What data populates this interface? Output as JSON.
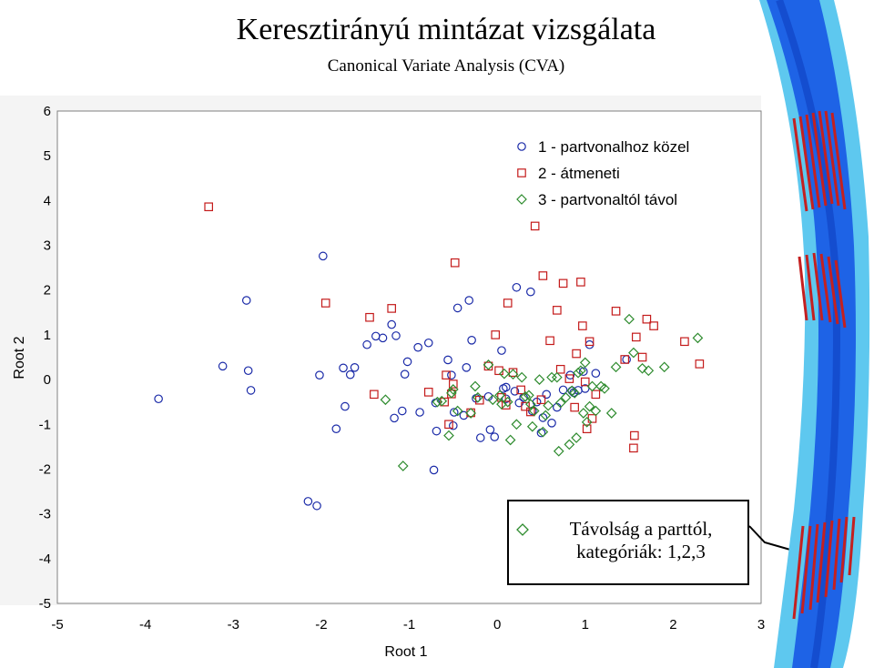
{
  "header": {
    "title": "Keresztirányú mintázat vizsgálata",
    "subtitle": "Canonical Variate Analysis (CVA)"
  },
  "callout": {
    "line1": "Távolság a parttól,",
    "line2": "kategóriák: 1,2,3",
    "marker_color": "#2e8b2e"
  },
  "colors": {
    "plot_background": "#ffffff",
    "frame": "#808080",
    "river_deep": "#1e63e6",
    "river_shallow": "#5ec8ef",
    "transect": "#c42020"
  },
  "chart_data": {
    "type": "scatter",
    "xlabel": "Root 1",
    "ylabel": "Root 2",
    "xlim": [
      -5,
      3
    ],
    "ylim": [
      -5,
      6
    ],
    "x_ticks": [
      "-5",
      "-4",
      "-3",
      "-2",
      "-1",
      "0",
      "1",
      "2",
      "3"
    ],
    "y_ticks": [
      "-5",
      "-4",
      "-3",
      "-2",
      "-1",
      "0",
      "1",
      "2",
      "3",
      "4",
      "5",
      "6"
    ],
    "grid": false,
    "legend_position": "top-right",
    "series": [
      {
        "name": "1 - partvonalhoz közel",
        "marker": "circle",
        "color": "#1a2aa8",
        "points": [
          [
            -3.85,
            -0.43
          ],
          [
            -3.12,
            0.3
          ],
          [
            -2.85,
            1.77
          ],
          [
            -2.83,
            0.2
          ],
          [
            -2.8,
            -0.24
          ],
          [
            -2.15,
            -2.72
          ],
          [
            -2.05,
            -2.82
          ],
          [
            -2.02,
            0.1
          ],
          [
            -1.98,
            2.76
          ],
          [
            -1.83,
            -1.1
          ],
          [
            -1.75,
            0.26
          ],
          [
            -1.73,
            -0.6
          ],
          [
            -1.67,
            0.11
          ],
          [
            -1.62,
            0.27
          ],
          [
            -1.48,
            0.78
          ],
          [
            -1.38,
            0.97
          ],
          [
            -1.3,
            0.93
          ],
          [
            -1.2,
            1.23
          ],
          [
            -1.17,
            -0.86
          ],
          [
            -1.15,
            0.98
          ],
          [
            -1.08,
            -0.7
          ],
          [
            -1.05,
            0.12
          ],
          [
            -1.02,
            0.4
          ],
          [
            -0.9,
            0.72
          ],
          [
            -0.88,
            -0.73
          ],
          [
            -0.78,
            0.82
          ],
          [
            -0.72,
            -2.02
          ],
          [
            -0.7,
            -0.52
          ],
          [
            -0.69,
            -1.15
          ],
          [
            -0.56,
            0.44
          ],
          [
            -0.52,
            0.1
          ],
          [
            -0.5,
            -1.03
          ],
          [
            -0.49,
            -0.73
          ],
          [
            -0.45,
            1.6
          ],
          [
            -0.38,
            -0.8
          ],
          [
            -0.35,
            0.27
          ],
          [
            -0.32,
            1.77
          ],
          [
            -0.29,
            0.88
          ],
          [
            -0.24,
            -0.42
          ],
          [
            -0.19,
            -1.3
          ],
          [
            -0.1,
            -0.38
          ],
          [
            -0.08,
            -1.12
          ],
          [
            -0.03,
            -1.28
          ],
          [
            0.05,
            0.65
          ],
          [
            0.07,
            -0.2
          ],
          [
            0.1,
            -0.17
          ],
          [
            0.1,
            -0.43
          ],
          [
            0.2,
            -0.26
          ],
          [
            0.22,
            2.06
          ],
          [
            0.25,
            -0.52
          ],
          [
            0.3,
            -0.4
          ],
          [
            0.38,
            1.96
          ],
          [
            0.4,
            -0.7
          ],
          [
            0.45,
            -0.5
          ],
          [
            0.5,
            -1.19
          ],
          [
            0.52,
            -0.85
          ],
          [
            0.56,
            -0.33
          ],
          [
            0.62,
            -0.97
          ],
          [
            0.68,
            -0.62
          ],
          [
            0.75,
            -0.23
          ],
          [
            0.83,
            0.1
          ],
          [
            0.85,
            -0.25
          ],
          [
            0.87,
            -0.29
          ],
          [
            0.92,
            -0.24
          ],
          [
            0.98,
            0.18
          ],
          [
            1.0,
            -0.2
          ],
          [
            1.05,
            0.78
          ],
          [
            1.12,
            0.14
          ],
          [
            1.47,
            0.45
          ]
        ]
      },
      {
        "name": "2 - átmeneti",
        "marker": "square",
        "color": "#c41a1a",
        "points": [
          [
            -3.28,
            3.86
          ],
          [
            -1.95,
            1.71
          ],
          [
            -1.45,
            1.39
          ],
          [
            -1.4,
            -0.33
          ],
          [
            -1.2,
            1.59
          ],
          [
            -0.78,
            -0.28
          ],
          [
            -0.6,
            -0.5
          ],
          [
            -0.58,
            0.1
          ],
          [
            -0.55,
            -1.0
          ],
          [
            -0.52,
            -0.32
          ],
          [
            -0.5,
            -0.1
          ],
          [
            -0.48,
            2.61
          ],
          [
            -0.3,
            -0.74
          ],
          [
            -0.2,
            -0.46
          ],
          [
            -0.1,
            0.3
          ],
          [
            -0.02,
            1.0
          ],
          [
            0.02,
            0.2
          ],
          [
            0.05,
            -0.4
          ],
          [
            0.1,
            -0.57
          ],
          [
            0.12,
            1.71
          ],
          [
            0.18,
            0.16
          ],
          [
            0.27,
            -0.23
          ],
          [
            0.32,
            -0.6
          ],
          [
            0.38,
            -0.72
          ],
          [
            0.43,
            3.43
          ],
          [
            0.5,
            -0.45
          ],
          [
            0.52,
            2.32
          ],
          [
            0.6,
            0.87
          ],
          [
            0.68,
            1.55
          ],
          [
            0.72,
            0.23
          ],
          [
            0.75,
            2.15
          ],
          [
            0.82,
            0.02
          ],
          [
            0.88,
            -0.62
          ],
          [
            0.9,
            0.58
          ],
          [
            0.95,
            2.18
          ],
          [
            0.97,
            1.2
          ],
          [
            1.0,
            -0.05
          ],
          [
            1.02,
            -1.1
          ],
          [
            1.05,
            0.85
          ],
          [
            1.08,
            -0.87
          ],
          [
            1.12,
            -0.33
          ],
          [
            1.35,
            1.53
          ],
          [
            1.45,
            0.45
          ],
          [
            1.55,
            -1.53
          ],
          [
            1.56,
            -1.25
          ],
          [
            1.58,
            0.95
          ],
          [
            1.65,
            0.5
          ],
          [
            1.7,
            1.35
          ],
          [
            1.78,
            1.2
          ],
          [
            2.13,
            0.85
          ],
          [
            2.3,
            0.35
          ]
        ]
      },
      {
        "name": "3 - partvonaltól távol",
        "marker": "diamond",
        "color": "#2e8b2e",
        "points": [
          [
            -1.27,
            -0.45
          ],
          [
            -1.07,
            -1.93
          ],
          [
            -0.68,
            -0.5
          ],
          [
            -0.63,
            -0.48
          ],
          [
            -0.55,
            -1.25
          ],
          [
            -0.52,
            -0.3
          ],
          [
            -0.5,
            -0.22
          ],
          [
            -0.45,
            -0.7
          ],
          [
            -0.3,
            -0.75
          ],
          [
            -0.25,
            -0.15
          ],
          [
            -0.22,
            -0.4
          ],
          [
            -0.1,
            0.33
          ],
          [
            -0.05,
            -0.45
          ],
          [
            0.03,
            -0.35
          ],
          [
            0.05,
            -0.55
          ],
          [
            0.08,
            0.13
          ],
          [
            0.12,
            -0.5
          ],
          [
            0.15,
            -1.35
          ],
          [
            0.18,
            0.12
          ],
          [
            0.22,
            -1.0
          ],
          [
            0.28,
            0.05
          ],
          [
            0.32,
            -0.38
          ],
          [
            0.36,
            -0.35
          ],
          [
            0.38,
            -0.55
          ],
          [
            0.4,
            -1.05
          ],
          [
            0.42,
            -0.7
          ],
          [
            0.48,
            0.0
          ],
          [
            0.52,
            -1.17
          ],
          [
            0.55,
            -0.8
          ],
          [
            0.58,
            -0.58
          ],
          [
            0.62,
            0.05
          ],
          [
            0.68,
            0.05
          ],
          [
            0.7,
            -1.6
          ],
          [
            0.72,
            -0.52
          ],
          [
            0.78,
            -0.4
          ],
          [
            0.82,
            -1.45
          ],
          [
            0.85,
            -0.25
          ],
          [
            0.88,
            -0.3
          ],
          [
            0.9,
            -1.3
          ],
          [
            0.92,
            0.15
          ],
          [
            0.95,
            0.2
          ],
          [
            0.98,
            -0.75
          ],
          [
            1.0,
            0.38
          ],
          [
            1.02,
            -0.95
          ],
          [
            1.05,
            -0.6
          ],
          [
            1.08,
            -0.15
          ],
          [
            1.12,
            -0.7
          ],
          [
            1.18,
            -0.15
          ],
          [
            1.22,
            -0.2
          ],
          [
            1.3,
            -0.75
          ],
          [
            1.35,
            0.28
          ],
          [
            1.5,
            1.35
          ],
          [
            1.55,
            0.6
          ],
          [
            1.65,
            0.25
          ],
          [
            1.72,
            0.2
          ],
          [
            1.9,
            0.28
          ],
          [
            2.28,
            0.93
          ]
        ]
      }
    ]
  }
}
